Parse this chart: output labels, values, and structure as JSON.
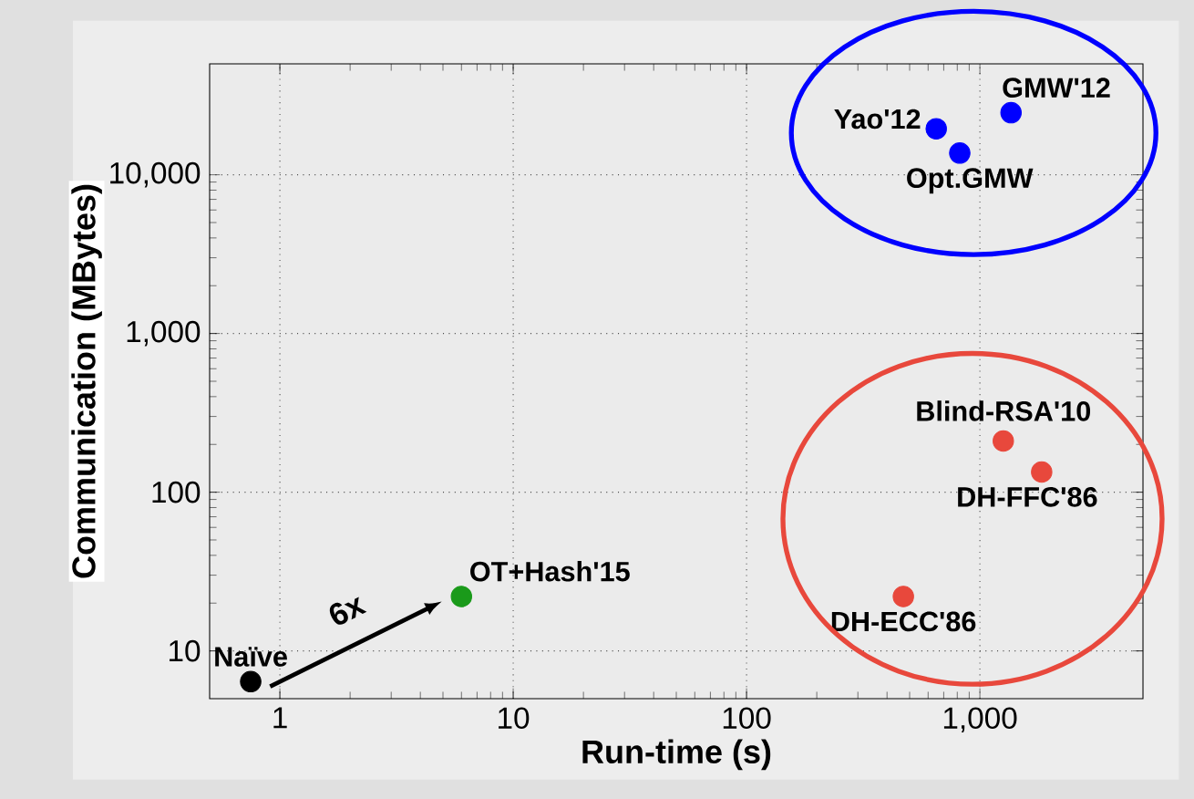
{
  "chart_data": {
    "type": "scatter",
    "xlabel": "Run-time (s)",
    "ylabel": "Communication (MBytes)",
    "log": "xy",
    "grid": true,
    "marker": "circle",
    "xlim": [
      0.5,
      5000
    ],
    "ylim": [
      5,
      50000
    ],
    "xticks": [
      1,
      10,
      100,
      {
        "value": 1000,
        "label": "1,000"
      }
    ],
    "yticks": [
      10,
      100,
      {
        "value": 1000,
        "label": "1,000"
      },
      {
        "value": 10000,
        "label": "10,000"
      }
    ],
    "series": [
      {
        "x": [
          0.75,
          6.0,
          470,
          1260,
          1840,
          650,
          820,
          1360
        ],
        "values": [
          6.4,
          22,
          22,
          210,
          134,
          19500,
          13700,
          24600
        ],
        "colors": [
          "#000000",
          "#1a9a1a",
          "#e8483c",
          "#e8483c",
          "#e8483c",
          "#0000ff",
          "#0000ff",
          "#0000ff"
        ]
      }
    ],
    "annotations": [
      {
        "text": "Naïve",
        "x": 0.75,
        "y": 6.4
      },
      {
        "text": "OT+Hash'15",
        "x": 6.0,
        "y": 22
      },
      {
        "text": "DH-ECC'86",
        "x": 470,
        "y": 22
      },
      {
        "text": "Blind-RSA'10",
        "x": 1260,
        "y": 210
      },
      {
        "text": "DH-FFC'86",
        "x": 1840,
        "y": 134
      },
      {
        "text": "Yao'12",
        "x": 650,
        "y": 19500
      },
      {
        "text": "Opt.GMW",
        "x": 820,
        "y": 13700
      },
      {
        "text": "GMW'12",
        "x": 1360,
        "y": 24600
      },
      "6x"
    ]
  }
}
